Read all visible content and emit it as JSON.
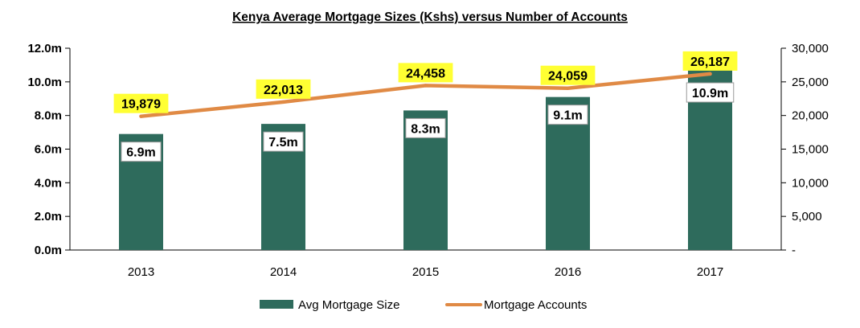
{
  "chart_data": {
    "type": "bar+line",
    "title": "Kenya Average Mortgage Sizes (Kshs) versus Number of Accounts",
    "categories": [
      "2013",
      "2014",
      "2015",
      "2016",
      "2017"
    ],
    "series": [
      {
        "name": "Avg Mortgage Size",
        "type": "bar",
        "axis": "left",
        "values": [
          6.9,
          7.5,
          8.3,
          9.1,
          10.9
        ],
        "labels": [
          "6.9m",
          "7.5m",
          "8.3m",
          "9.1m",
          "10.9m"
        ],
        "color": "#2E6B5C"
      },
      {
        "name": "Mortgage Accounts",
        "type": "line",
        "axis": "right",
        "values": [
          19879,
          22013,
          24458,
          24059,
          26187
        ],
        "labels": [
          "19,879",
          "22,013",
          "24,458",
          "24,059",
          "26,187"
        ],
        "color": "#E08A45",
        "label_bg": "#FFFF33"
      }
    ],
    "y_left": {
      "ylim": [
        0,
        12
      ],
      "ticks": [
        0,
        2,
        4,
        6,
        8,
        10,
        12
      ],
      "tick_labels": [
        "0.0m",
        "2.0m",
        "4.0m",
        "6.0m",
        "8.0m",
        "10.0m",
        "12.0m"
      ]
    },
    "y_right": {
      "ylim": [
        0,
        30000
      ],
      "ticks": [
        0,
        5000,
        10000,
        15000,
        20000,
        25000,
        30000
      ],
      "tick_labels": [
        "-",
        "5,000",
        "10,000",
        "15,000",
        "20,000",
        "25,000",
        "30,000"
      ]
    },
    "grid": false,
    "legend": "bottom"
  }
}
